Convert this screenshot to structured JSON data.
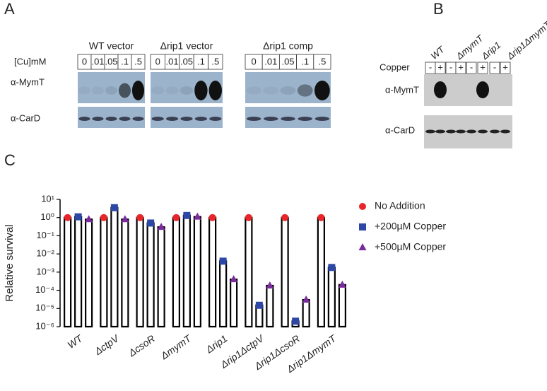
{
  "panel_a": {
    "label": "A",
    "groups": [
      "WT vector",
      "Δrip1 vector",
      "Δrip1 comp"
    ],
    "cu_label": "[Cu]mM",
    "concentrations": [
      "0",
      ".01",
      ".05",
      ".1",
      ".5"
    ],
    "rows": [
      "α-MymT",
      "α-CarD"
    ]
  },
  "panel_b": {
    "label": "B",
    "strains": [
      "WT",
      "ΔmymT",
      "Δrip1",
      "Δrip1ΔmymT"
    ],
    "copper_label": "Copper",
    "signs": [
      "-",
      "+"
    ],
    "rows": [
      "α-MymT",
      "α-CarD"
    ]
  },
  "chart_data": {
    "type": "bar",
    "panel_label": "C",
    "ylabel": "Relative survival",
    "log_scale": true,
    "categories": [
      "WT",
      "ΔctpV",
      "ΔcsoR",
      "ΔmymT",
      "Δrip1",
      "Δrip1ΔctpV",
      "Δrip1ΔcsoR",
      "Δrip1ΔmymT"
    ],
    "series": [
      {
        "name": "No Addition",
        "color": "#e8262a",
        "marker": "circle",
        "values": [
          1,
          1,
          1,
          1,
          1,
          1,
          1,
          1
        ]
      },
      {
        "name": "+200µM Copper",
        "color": "#2c47a5",
        "marker": "square",
        "values": [
          1.1,
          3.5,
          0.5,
          1.3,
          0.004,
          1.5e-05,
          2e-06,
          0.0018
        ]
      },
      {
        "name": "+500µM Copper",
        "color": "#7b2c9c",
        "marker": "triangle",
        "values": [
          0.8,
          0.8,
          0.3,
          1.1,
          0.0004,
          0.00018,
          3e-05,
          0.0002
        ]
      }
    ],
    "ylim": [
      1e-06,
      10
    ],
    "yticks": [
      {
        "value": 10,
        "label": "10¹"
      },
      {
        "value": 1,
        "label": "10⁰"
      },
      {
        "value": 0.1,
        "label": "10⁻¹"
      },
      {
        "value": 0.01,
        "label": "10⁻²"
      },
      {
        "value": 0.001,
        "label": "10⁻³"
      },
      {
        "value": 0.0001,
        "label": "10⁻⁴"
      },
      {
        "value": 1e-05,
        "label": "10⁻⁵"
      },
      {
        "value": 1e-06,
        "label": "10⁻⁶"
      }
    ],
    "legend": "right"
  }
}
